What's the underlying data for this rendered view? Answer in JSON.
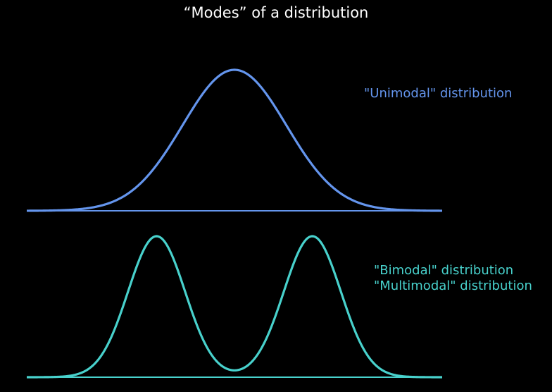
{
  "title": "“Modes” of a distribution",
  "colors": {
    "background": "#000000",
    "title": "#ffffff",
    "unimodal": "#6495ed",
    "bimodal": "#48d1cc"
  },
  "labels": {
    "unimodal": "\"Unimodal\" distribution",
    "bimodal": "\"Bimodal\" distribution",
    "multimodal": "\"Multimodal\" distribution"
  },
  "chart_data": [
    {
      "type": "line",
      "name": "unimodal curve",
      "shape": "single gaussian",
      "peaks": 1,
      "x_range": [
        -4,
        4
      ],
      "peak_x": [
        0
      ],
      "sigma": 1,
      "baseline": true
    },
    {
      "type": "line",
      "name": "bimodal curve",
      "shape": "mixture of two gaussians",
      "peaks": 2,
      "x_range": [
        -4,
        4
      ],
      "peak_x": [
        -1.5,
        1.5
      ],
      "sigma": 0.55,
      "baseline": true
    }
  ]
}
